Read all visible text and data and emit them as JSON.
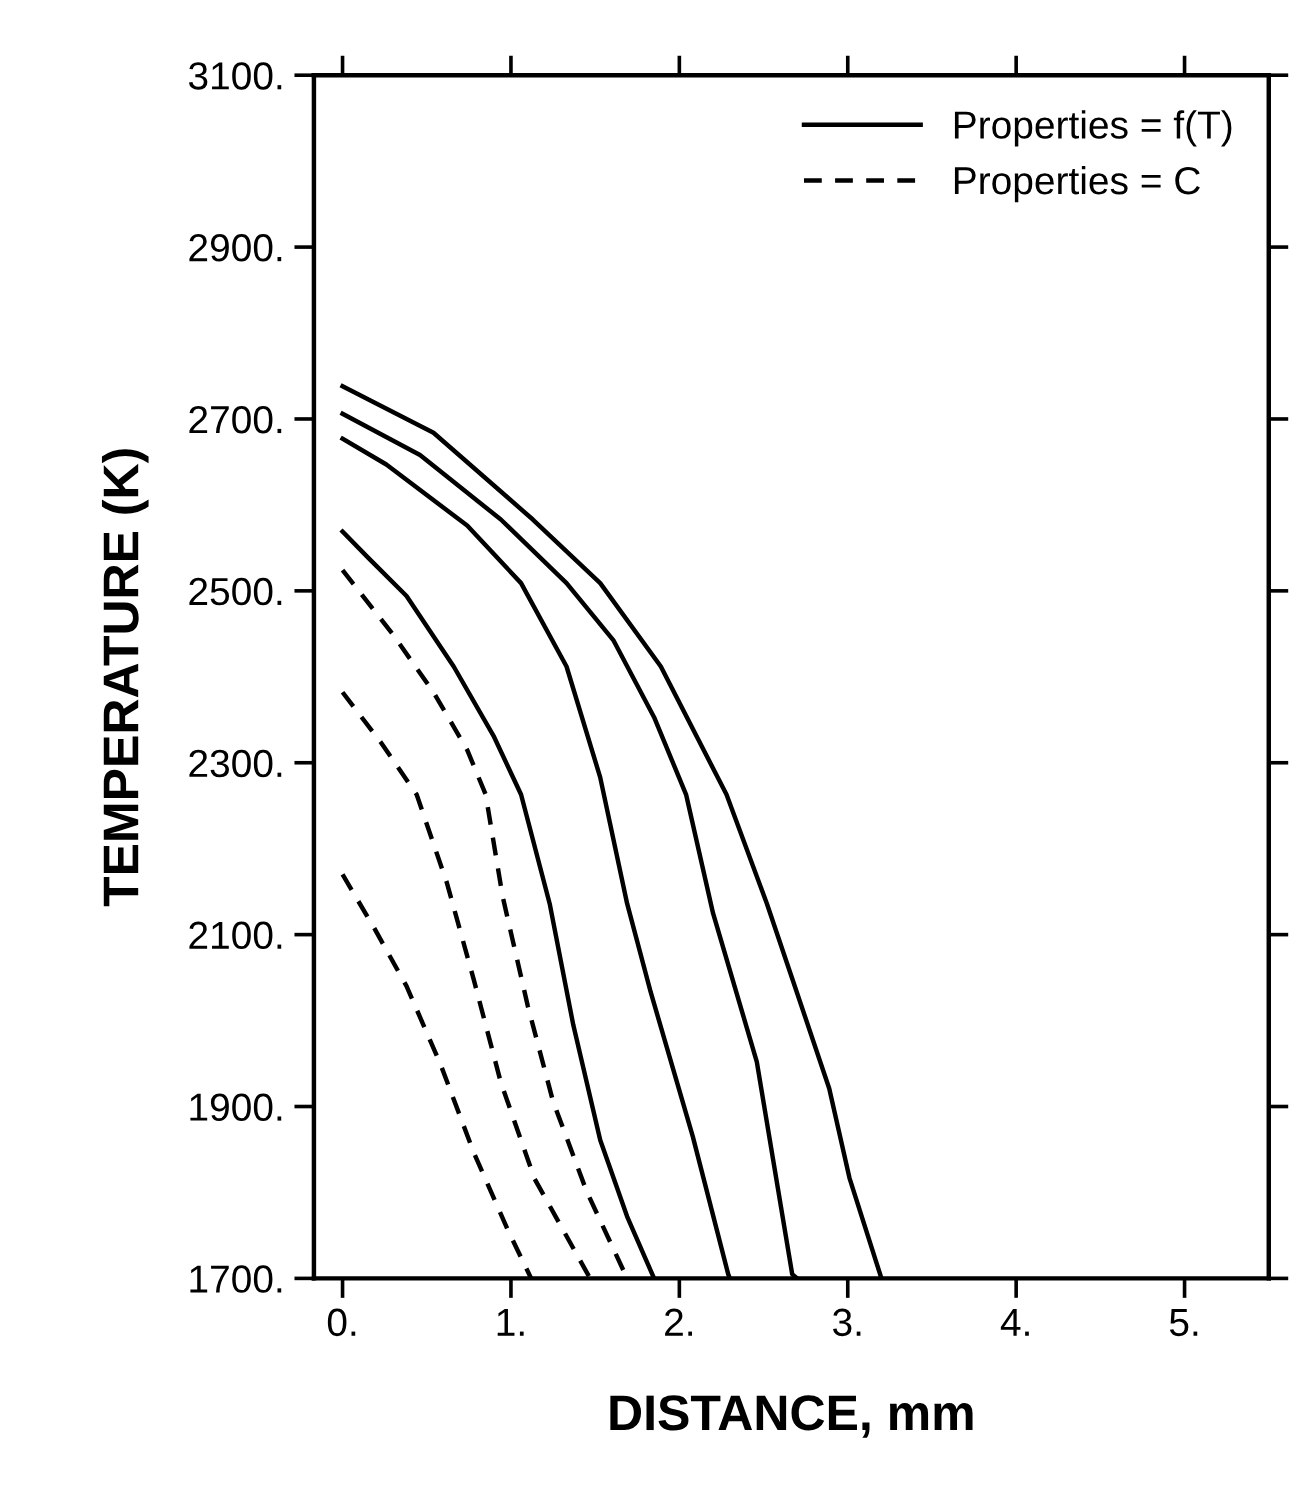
{
  "chart_data": {
    "type": "line",
    "xlabel": "DISTANCE, mm",
    "ylabel": "TEMPERATURE (K)",
    "xlim": [
      -0.17,
      5.5
    ],
    "ylim": [
      1700,
      3100
    ],
    "xticks": [
      {
        "value": 0,
        "label": "0."
      },
      {
        "value": 1,
        "label": "1."
      },
      {
        "value": 2,
        "label": "2."
      },
      {
        "value": 3,
        "label": "3."
      },
      {
        "value": 4,
        "label": "4."
      },
      {
        "value": 5,
        "label": "5."
      }
    ],
    "yticks": [
      {
        "value": 1700,
        "label": "1700."
      },
      {
        "value": 1900,
        "label": "1900."
      },
      {
        "value": 2100,
        "label": "2100."
      },
      {
        "value": 2300,
        "label": "2300."
      },
      {
        "value": 2500,
        "label": "2500."
      },
      {
        "value": 2700,
        "label": "2700."
      },
      {
        "value": 2900,
        "label": "2900."
      },
      {
        "value": 3100,
        "label": "3100."
      }
    ],
    "grid": false,
    "legend": "top right",
    "marker": "none",
    "series": [
      {
        "name": "Properties = f(T)",
        "color": "#000000",
        "line_style": "solid",
        "x": [
          0,
          0.54,
          1.13,
          1.53,
          1.89,
          2.28,
          2.52,
          2.67,
          2.89,
          3.01,
          3.2
        ],
        "values": [
          2738,
          2684,
          2583,
          2509,
          2412,
          2263,
          2136,
          2049,
          1921,
          1817,
          1700
        ]
      },
      {
        "color": "#000000",
        "line_style": "solid",
        "x": [
          0,
          0.46,
          0.94,
          1.33,
          1.61,
          1.85,
          2.04,
          2.2,
          2.46,
          2.67,
          2.7
        ],
        "values": [
          2706,
          2658,
          2583,
          2509,
          2442,
          2353,
          2263,
          2125,
          1952,
          1705,
          1700
        ]
      },
      {
        "color": "#000000",
        "line_style": "solid",
        "x": [
          0,
          0.26,
          0.74,
          1.06,
          1.33,
          1.53,
          1.69,
          1.83,
          2.08,
          2.29,
          2.3
        ],
        "values": [
          2677,
          2647,
          2576,
          2509,
          2412,
          2283,
          2136,
          2033,
          1865,
          1705,
          1700
        ]
      },
      {
        "color": "#000000",
        "line_style": "solid",
        "x": [
          0,
          0.15,
          0.38,
          0.66,
          0.9,
          1.06,
          1.23,
          1.37,
          1.53,
          1.69,
          1.85
        ],
        "values": [
          2569,
          2539,
          2494,
          2412,
          2330,
          2263,
          2136,
          1995,
          1861,
          1772,
          1700
        ]
      },
      {
        "name": "Properties = C",
        "color": "#000000",
        "line_style": "dashed",
        "x": [
          0,
          0.3,
          0.54,
          0.74,
          0.85,
          0.95,
          1.1,
          1.25,
          1.45,
          1.69
        ],
        "values": [
          2524,
          2449,
          2382,
          2315,
          2263,
          2145,
          2017,
          1906,
          1801,
          1700
        ]
      },
      {
        "color": "#000000",
        "line_style": "dashed",
        "x": [
          0,
          0.23,
          0.44,
          0.62,
          0.78,
          0.94,
          1.14,
          1.47
        ],
        "values": [
          2382,
          2323,
          2263,
          2160,
          2047,
          1928,
          1816,
          1700
        ]
      },
      {
        "color": "#000000",
        "line_style": "dashed",
        "x": [
          0,
          0.19,
          0.38,
          0.58,
          0.78,
          0.98,
          1.12
        ],
        "values": [
          2170,
          2107,
          2040,
          1950,
          1846,
          1757,
          1700
        ]
      }
    ]
  }
}
